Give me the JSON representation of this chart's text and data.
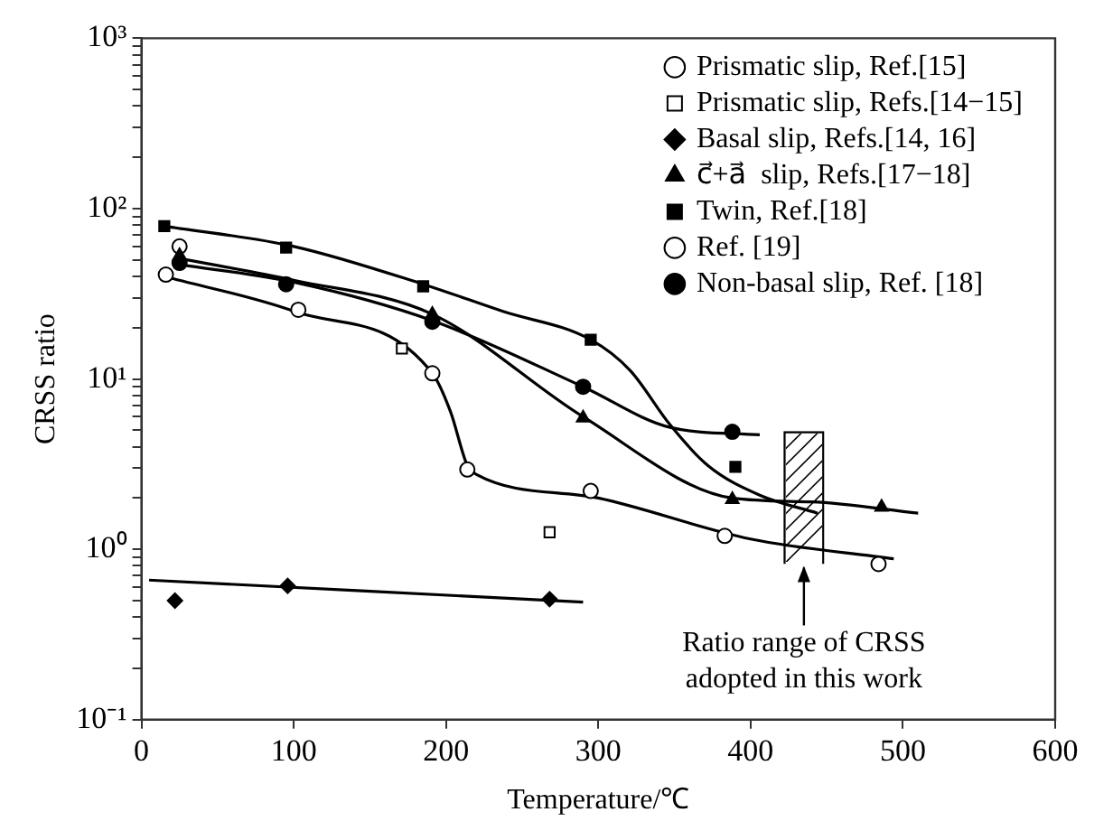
{
  "chart_data": {
    "type": "scatter",
    "xlabel": "Temperature/℃",
    "ylabel": "CRSS ratio",
    "log": "y",
    "grid": false,
    "legend": "top right",
    "xlim": [
      0,
      600
    ],
    "xticks": [
      0,
      100,
      200,
      300,
      400,
      500,
      600
    ],
    "ylim": [
      0.1,
      1000
    ],
    "yticks": [
      {
        "value": 0.1,
        "label": "10⁻¹"
      },
      {
        "value": 0.2,
        "label": null
      },
      {
        "value": 0.3,
        "label": null
      },
      {
        "value": 0.4,
        "label": null
      },
      {
        "value": 0.5,
        "label": null
      },
      {
        "value": 0.6,
        "label": null
      },
      {
        "value": 0.7,
        "label": null
      },
      {
        "value": 0.8,
        "label": null
      },
      {
        "value": 0.9,
        "label": null
      },
      {
        "value": 1,
        "label": "10⁰"
      },
      {
        "value": 2,
        "label": null
      },
      {
        "value": 3,
        "label": null
      },
      {
        "value": 4,
        "label": null
      },
      {
        "value": 5,
        "label": null
      },
      {
        "value": 6,
        "label": null
      },
      {
        "value": 7,
        "label": null
      },
      {
        "value": 8,
        "label": null
      },
      {
        "value": 9,
        "label": null
      },
      {
        "value": 10,
        "label": "10¹"
      },
      {
        "value": 20,
        "label": null
      },
      {
        "value": 30,
        "label": null
      },
      {
        "value": 40,
        "label": null
      },
      {
        "value": 50,
        "label": null
      },
      {
        "value": 60,
        "label": null
      },
      {
        "value": 70,
        "label": null
      },
      {
        "value": 80,
        "label": null
      },
      {
        "value": 90,
        "label": null
      },
      {
        "value": 100,
        "label": "10²"
      },
      {
        "value": 200,
        "label": null
      },
      {
        "value": 300,
        "label": null
      },
      {
        "value": 400,
        "label": null
      },
      {
        "value": 500,
        "label": null
      },
      {
        "value": 600,
        "label": null
      },
      {
        "value": 700,
        "label": null
      },
      {
        "value": 800,
        "label": null
      },
      {
        "value": 900,
        "label": null
      },
      {
        "value": 1000,
        "label": "10³"
      }
    ],
    "series": [
      {
        "name": "Prismatic slip, Ref.[15]",
        "marker": "circle",
        "color": "#ffffff",
        "x": [
          16,
          103,
          191,
          214
        ],
        "values": [
          41,
          25.5,
          10.8,
          2.94
        ]
      },
      {
        "name": "Prismatic slip, Refs.[14−15]",
        "marker": "square",
        "color": "#ffffff",
        "x": [
          171,
          268
        ],
        "values": [
          15.1,
          1.26
        ]
      },
      {
        "name": "Basal slip, Refs.[14, 16]",
        "marker": "diamond",
        "color": "#000000",
        "x": [
          22,
          96,
          268
        ],
        "values": [
          0.5,
          0.61,
          0.51
        ]
      },
      {
        "name": "c⃗+a⃗  slip, Refs.[17−18]",
        "marker": "triangle",
        "color": "#000000",
        "x": [
          25,
          191,
          290,
          388,
          486
        ],
        "values": [
          53,
          24,
          5.9,
          1.96,
          1.77
        ]
      },
      {
        "name": "Twin, Ref.[18]",
        "marker": "square",
        "color": "#000000",
        "x": [
          15,
          95,
          185,
          295,
          390
        ],
        "values": [
          79,
          59,
          35,
          17,
          3.05
        ]
      },
      {
        "name": "Ref. [19]",
        "marker": "circle",
        "color": "#ffffff",
        "x": [
          25,
          295,
          383,
          484
        ],
        "values": [
          60,
          2.2,
          1.2,
          0.82
        ]
      },
      {
        "name": "Non-basal slip, Ref. [18]",
        "marker": "circle",
        "color": "#000000",
        "x": [
          25,
          95,
          191,
          290,
          388
        ],
        "values": [
          48,
          36,
          21.7,
          9,
          4.9
        ]
      },
      {
        "type": "line",
        "marker": "none",
        "line_style": "solid",
        "color": "#000000",
        "x": [
          5,
          290
        ],
        "values": [
          0.66,
          0.49
        ]
      },
      {
        "type": "line",
        "marker": "none",
        "line_style": "solid",
        "color": "#000000",
        "x": [
          15,
          100,
          185,
          237,
          295,
          321,
          347,
          372,
          406,
          444
        ],
        "values": [
          79,
          60,
          36,
          25,
          17,
          11.2,
          5.4,
          3.1,
          2.08,
          1.63
        ]
      },
      {
        "type": "line",
        "marker": "none",
        "line_style": "solid",
        "color": "#000000",
        "x": [
          25,
          100,
          191,
          290,
          347,
          406
        ],
        "values": [
          47,
          37,
          22,
          9,
          5.2,
          4.7
        ]
      },
      {
        "type": "line",
        "marker": "none",
        "line_style": "solid",
        "color": "#000000",
        "x": [
          25,
          100,
          191,
          290,
          388,
          440,
          510
        ],
        "values": [
          51,
          38,
          24,
          6,
          2.0,
          1.9,
          1.63
        ]
      },
      {
        "type": "line",
        "marker": "none",
        "line_style": "solid",
        "color": "#000000",
        "x": [
          15,
          100,
          191,
          203,
          214,
          220,
          300,
          400,
          494
        ],
        "values": [
          40,
          25,
          10.8,
          6.4,
          3.1,
          2.75,
          2.0,
          1.15,
          0.88
        ]
      },
      {
        "type": "bar",
        "color": "#ffffff",
        "x": [
          435
        ],
        "base": [
          0.82
        ],
        "values": [
          4.08
        ]
      }
    ],
    "annotations": [
      {
        "text": "Ratio range of CRSS adopted in this work",
        "x": 435,
        "y": 0.82
      }
    ]
  }
}
